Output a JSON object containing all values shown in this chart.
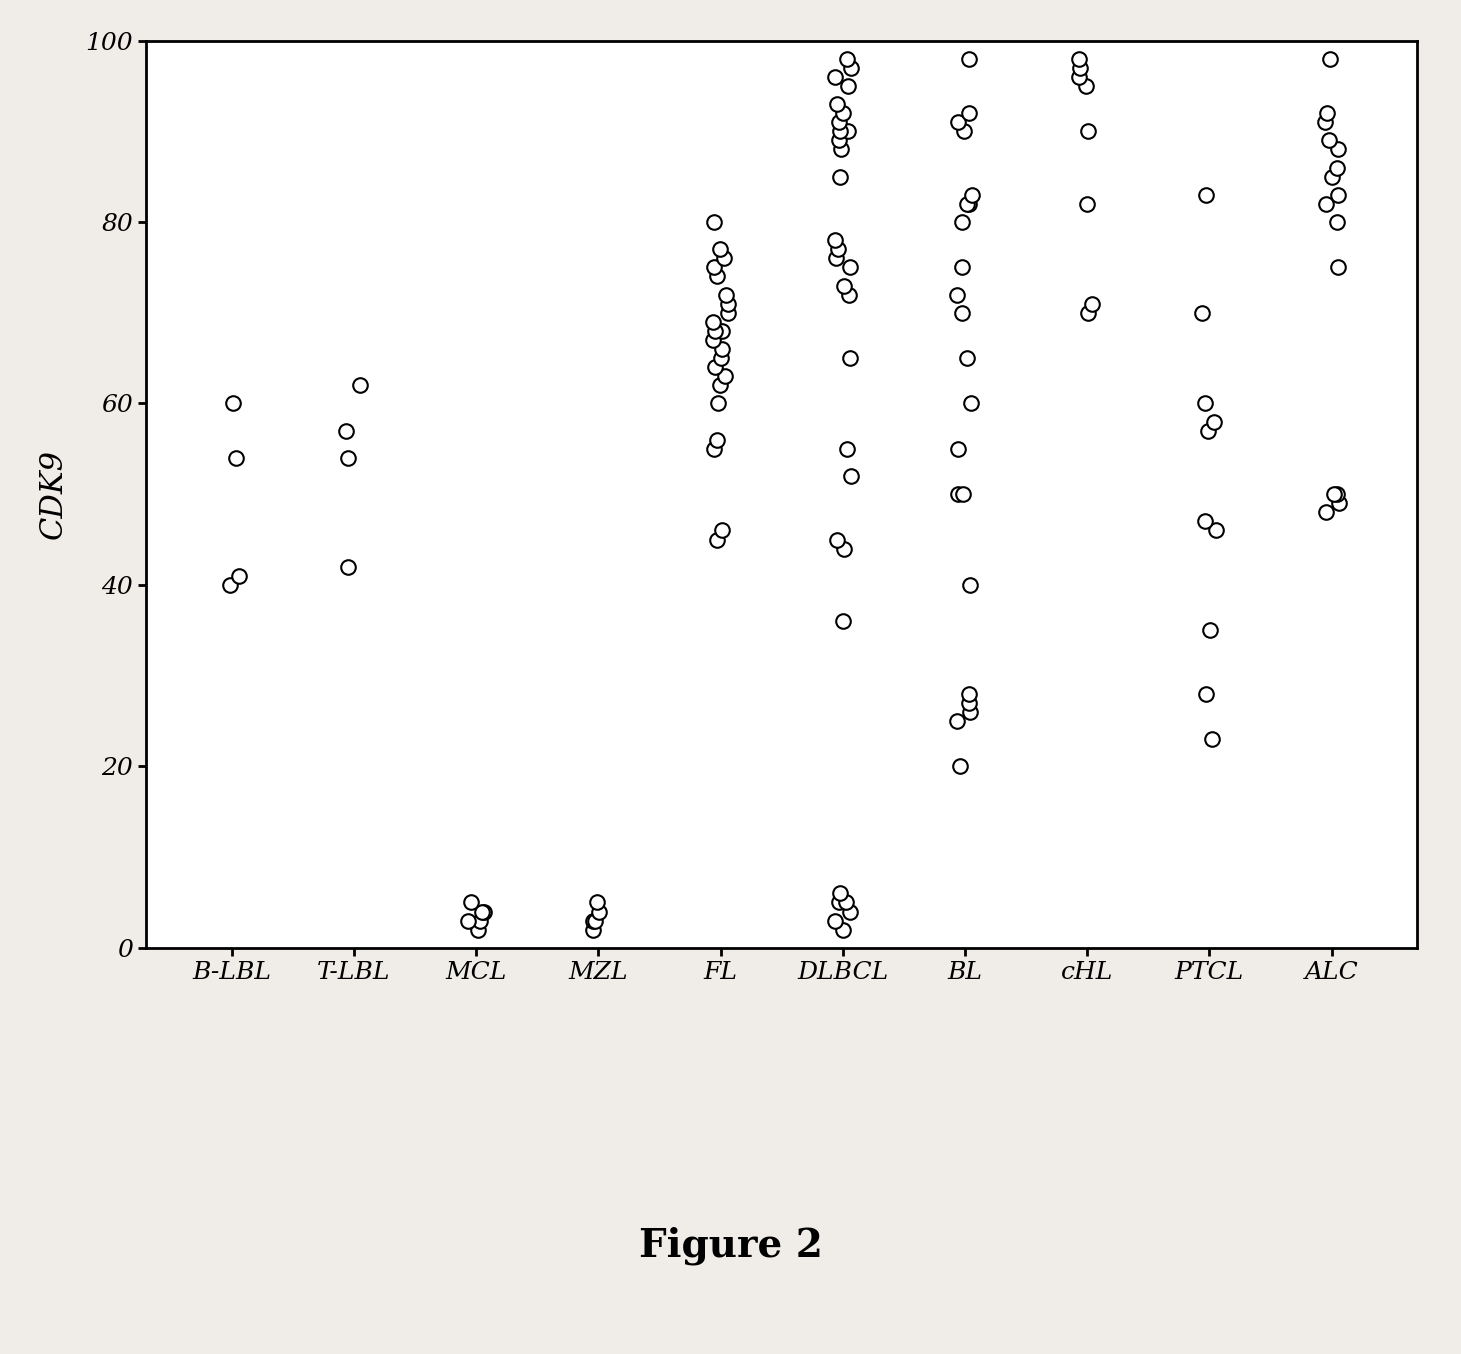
{
  "categories": [
    "B-LBL",
    "T-LBL",
    "MCL",
    "MZL",
    "FL",
    "DLBCL",
    "BL",
    "cHL",
    "PTCL",
    "ALC"
  ],
  "data": {
    "B-LBL": [
      40,
      41,
      54,
      60
    ],
    "T-LBL": [
      42,
      54,
      57,
      62
    ],
    "MCL": [
      2,
      3,
      3,
      4,
      4,
      5
    ],
    "MZL": [
      2,
      3,
      3,
      4,
      5
    ],
    "FL": [
      45,
      46,
      55,
      56,
      60,
      62,
      63,
      64,
      65,
      66,
      67,
      68,
      68,
      69,
      70,
      71,
      72,
      74,
      75,
      76,
      77,
      80
    ],
    "DLBCL": [
      2,
      3,
      4,
      5,
      5,
      6,
      36,
      44,
      45,
      52,
      55,
      65,
      72,
      73,
      75,
      76,
      77,
      78,
      85,
      88,
      89,
      90,
      90,
      91,
      92,
      93,
      95,
      96,
      97,
      98
    ],
    "BL": [
      20,
      25,
      26,
      27,
      28,
      40,
      50,
      50,
      55,
      60,
      65,
      70,
      72,
      75,
      80,
      82,
      82,
      83,
      90,
      91,
      92,
      98
    ],
    "cHL": [
      70,
      71,
      82,
      90,
      95,
      96,
      97,
      98
    ],
    "PTCL": [
      23,
      28,
      35,
      46,
      47,
      57,
      58,
      60,
      70,
      83
    ],
    "ALC": [
      48,
      49,
      50,
      50,
      75,
      80,
      82,
      83,
      85,
      86,
      88,
      89,
      91,
      92,
      98
    ]
  },
  "ylabel": "CDK9",
  "ylim": [
    0,
    100
  ],
  "yticks": [
    0,
    20,
    40,
    60,
    80,
    100
  ],
  "figure_label": "Figure 2",
  "marker_size": 110,
  "marker_color": "white",
  "marker_edge_color": "black",
  "marker_edge_width": 1.5,
  "background_color": "#f0ede8",
  "plot_bg_color": "white",
  "jitter_amount": 0.07
}
